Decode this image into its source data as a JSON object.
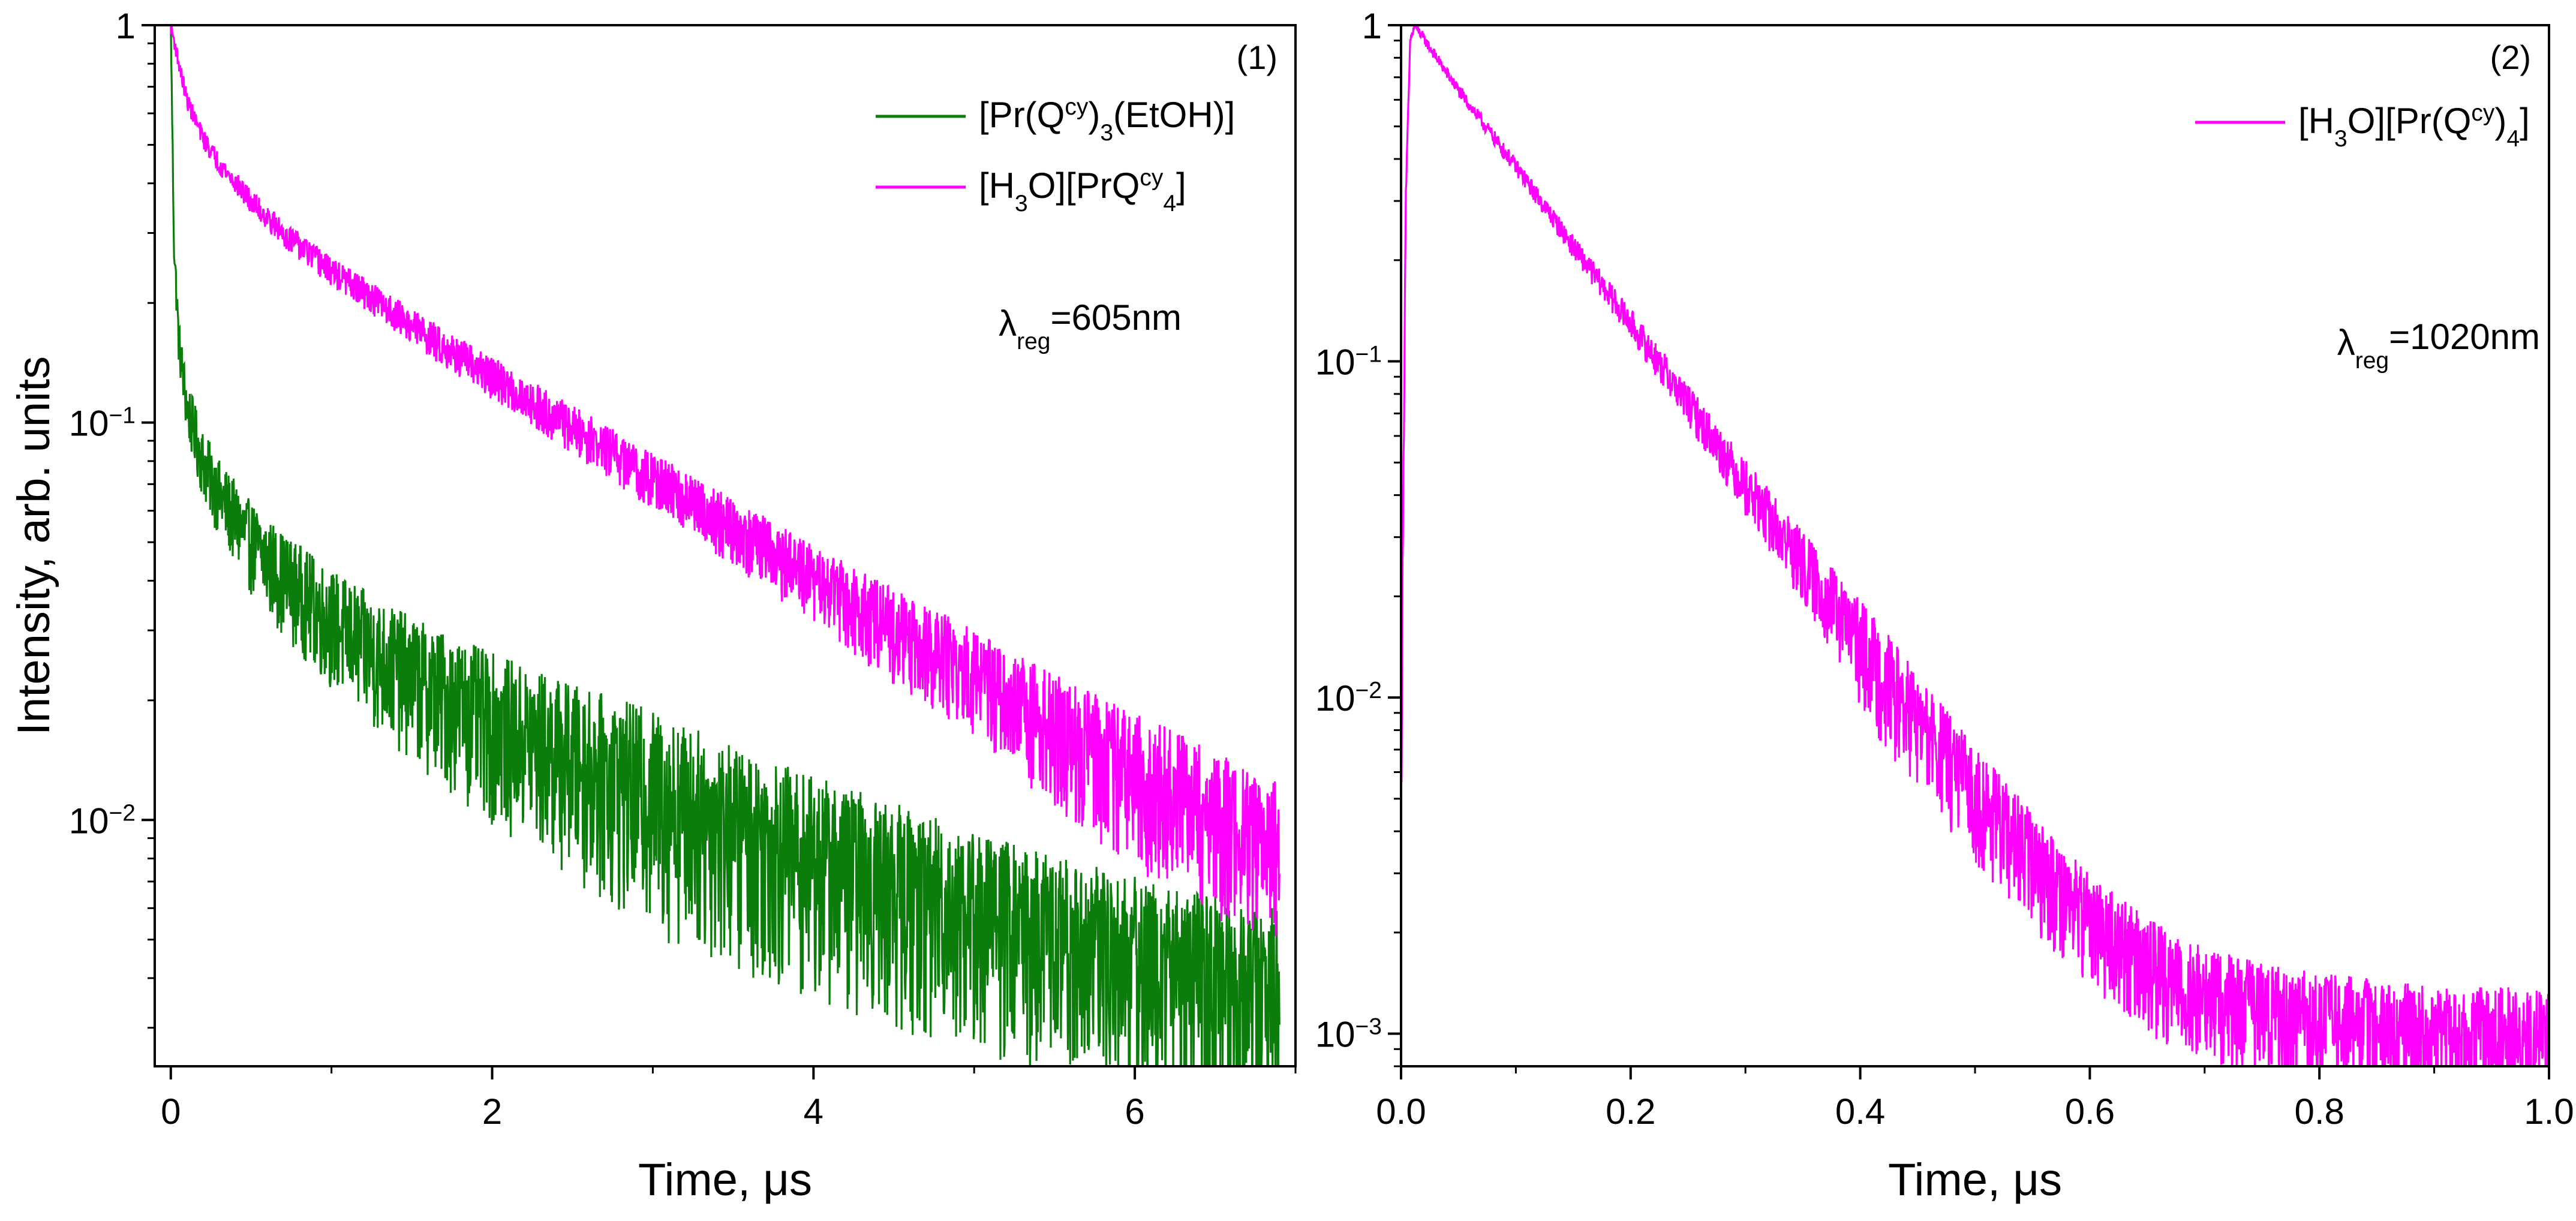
{
  "chart_data": [
    {
      "panel_label": "(1)",
      "type": "line",
      "xlabel": "Time, μs",
      "ylabel": "Intensity, arb. units",
      "xlim": [
        -0.1,
        7.0
      ],
      "ylim": [
        0.0024,
        1.0
      ],
      "yscale": "log",
      "x_ticks": [
        0,
        2,
        4,
        6
      ],
      "x_tick_labels": [
        "0",
        "2",
        "4",
        "6"
      ],
      "y_ticks": [
        1,
        0.1,
        0.01
      ],
      "y_tick_labels": [
        {
          "base": "1",
          "exp": ""
        },
        {
          "base": "10",
          "exp": "−1"
        },
        {
          "base": "10",
          "exp": "−2"
        }
      ],
      "annotation": {
        "symbol": "λ",
        "sub": "reg",
        "text": "=605nm"
      },
      "legend": [
        {
          "parts": [
            [
              "n",
              "[Pr(Q"
            ],
            [
              "sup",
              "cy"
            ],
            [
              "n",
              ")"
            ],
            [
              "sub",
              "3"
            ],
            [
              "n",
              "(EtOH)]"
            ]
          ]
        },
        {
          "parts": [
            [
              "n",
              "[H"
            ],
            [
              "sub",
              "3"
            ],
            [
              "n",
              "O][PrQ"
            ],
            [
              "sup",
              "cy"
            ],
            [
              "sub",
              "4"
            ],
            [
              "n",
              "]"
            ]
          ]
        }
      ],
      "series": [
        {
          "name": "[Pr(Qcy)3(EtOH)]",
          "color": "#0a7d0a",
          "x": [
            0.0,
            0.02,
            0.05,
            0.1,
            0.2,
            0.3,
            0.5,
            0.7,
            1.0,
            1.3,
            1.6,
            2.0,
            2.5,
            3.0,
            3.5,
            4.0,
            4.5,
            5.0,
            5.5,
            6.0,
            6.5,
            6.9
          ],
          "y": [
            1.0,
            0.28,
            0.16,
            0.11,
            0.08,
            0.066,
            0.05,
            0.041,
            0.032,
            0.026,
            0.022,
            0.018,
            0.0145,
            0.012,
            0.0098,
            0.0082,
            0.007,
            0.006,
            0.0052,
            0.0046,
            0.0041,
            0.0038
          ],
          "noise": 0.18
        },
        {
          "name": "[H3O][PrQcy4]",
          "color": "#ff00ff",
          "x": [
            0.0,
            0.05,
            0.1,
            0.2,
            0.3,
            0.5,
            0.7,
            1.0,
            1.3,
            1.6,
            2.0,
            2.5,
            3.0,
            3.5,
            4.0,
            4.5,
            5.0,
            5.5,
            6.0,
            6.5,
            6.9
          ],
          "y": [
            1.0,
            0.8,
            0.65,
            0.52,
            0.45,
            0.36,
            0.3,
            0.24,
            0.2,
            0.165,
            0.13,
            0.097,
            0.072,
            0.054,
            0.04,
            0.03,
            0.023,
            0.017,
            0.013,
            0.0102,
            0.0088
          ],
          "noise": 0.14
        }
      ]
    },
    {
      "panel_label": "(2)",
      "type": "line",
      "xlabel": "Time, μs",
      "ylabel": "",
      "xlim": [
        0.0,
        1.0
      ],
      "ylim": [
        0.0008,
        1.0
      ],
      "yscale": "log",
      "x_ticks": [
        0.0,
        0.2,
        0.4,
        0.6,
        0.8,
        1.0
      ],
      "x_tick_labels": [
        "0.0",
        "0.2",
        "0.4",
        "0.6",
        "0.8",
        "1.0"
      ],
      "y_ticks": [
        1,
        0.1,
        0.01,
        0.001
      ],
      "y_tick_labels": [
        {
          "base": "1",
          "exp": ""
        },
        {
          "base": "10",
          "exp": "−1"
        },
        {
          "base": "10",
          "exp": "−2"
        },
        {
          "base": "10",
          "exp": "−3"
        }
      ],
      "annotation": {
        "symbol": "λ",
        "sub": "reg",
        "text": "=1020nm"
      },
      "legend": [
        {
          "parts": [
            [
              "n",
              "[H"
            ],
            [
              "sub",
              "3"
            ],
            [
              "n",
              "O][Pr(Q"
            ],
            [
              "sup",
              "cy"
            ],
            [
              "n",
              ")"
            ],
            [
              "sub",
              "4"
            ],
            [
              "n",
              "]"
            ]
          ]
        }
      ],
      "series": [
        {
          "name": "[H3O][Pr(Qcy)4]",
          "color": "#ff00ff",
          "x": [
            0.0,
            0.004,
            0.008,
            0.012,
            0.05,
            0.1,
            0.15,
            0.2,
            0.25,
            0.3,
            0.35,
            0.4,
            0.45,
            0.5,
            0.55,
            0.6,
            0.65,
            0.7,
            0.8,
            0.9,
            1.0
          ],
          "y": [
            0.006,
            0.3,
            0.9,
            1.0,
            0.64,
            0.38,
            0.22,
            0.13,
            0.075,
            0.043,
            0.025,
            0.0145,
            0.0085,
            0.0052,
            0.0033,
            0.0022,
            0.0016,
            0.0013,
            0.0011,
            0.001,
            0.001
          ],
          "noise": 0.12
        }
      ]
    }
  ]
}
